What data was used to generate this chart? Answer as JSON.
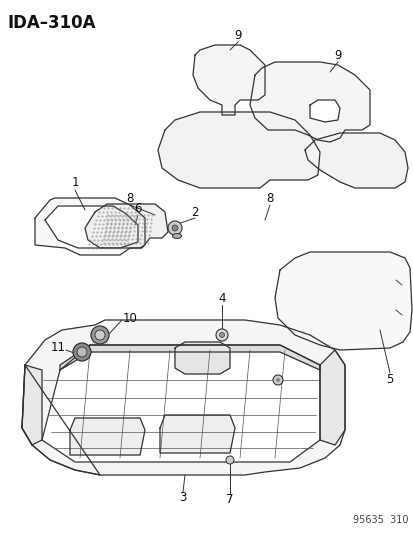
{
  "title": "IDA–310A",
  "watermark": "95635  310",
  "background_color": "#ffffff",
  "line_color": "#333333",
  "label_color": "#111111",
  "fig_width": 4.14,
  "fig_height": 5.33,
  "dpi": 100
}
